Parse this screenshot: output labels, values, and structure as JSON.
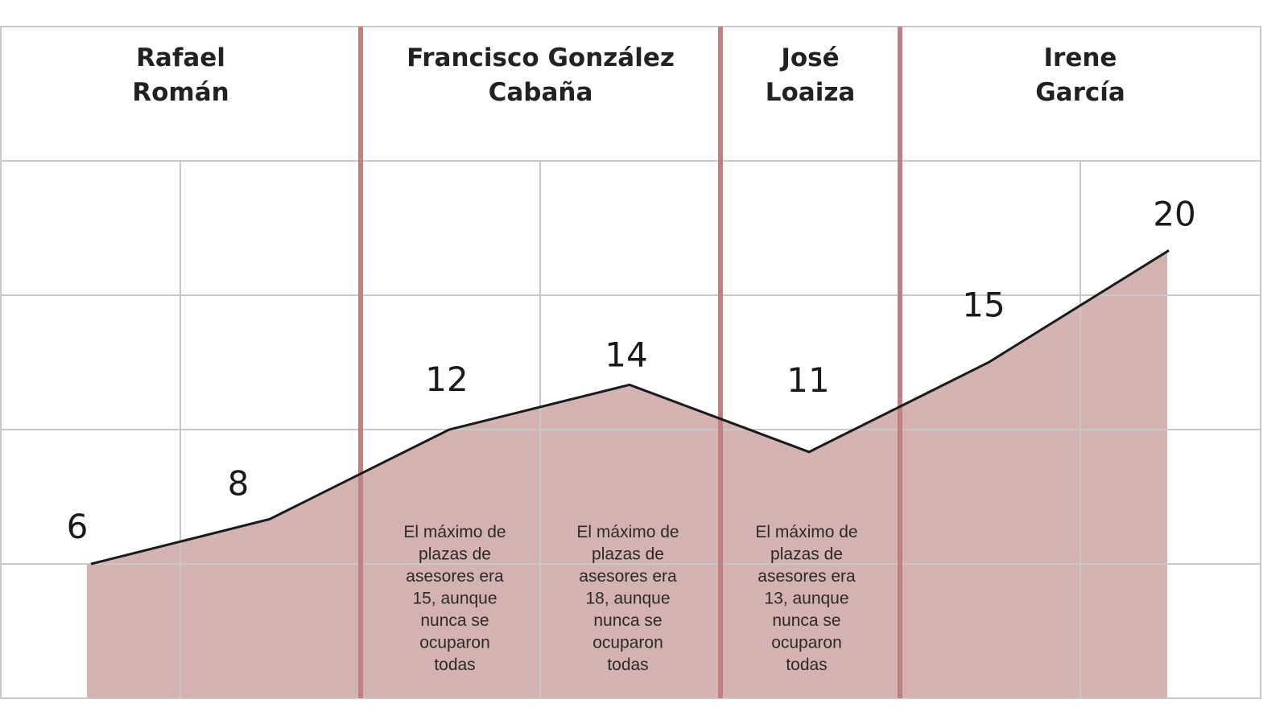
{
  "chart_data": {
    "type": "area",
    "title": "",
    "xlabel": "",
    "ylabel": "",
    "ylim": [
      0,
      24
    ],
    "grid": true,
    "colors": {
      "fill": "#d5b2b2",
      "line": "#1a1a1a",
      "divider": "#c07f80",
      "grid": "#c8c8c8"
    },
    "periods": [
      {
        "name_lines": [
          "Rafael",
          "Román"
        ],
        "note_lines": []
      },
      {
        "name_lines": [
          "Francisco González",
          "Cabaña"
        ],
        "note_lines": []
      },
      {
        "name_lines": [
          "José",
          "Loaiza"
        ],
        "note_lines": []
      },
      {
        "name_lines": [
          "Irene",
          "García"
        ],
        "note_lines": []
      }
    ],
    "points": [
      {
        "period": 0,
        "value": 6,
        "label": "6"
      },
      {
        "period": 0,
        "value": 8,
        "label": "8"
      },
      {
        "period": 1,
        "value": 12,
        "label": "12",
        "note_lines": [
          "El máximo de",
          "plazas de",
          "asesores era",
          "15, aunque",
          "nunca se",
          "ocuparon",
          "todas"
        ]
      },
      {
        "period": 1,
        "value": 14,
        "label": "14",
        "note_lines": [
          "El máximo de",
          "plazas de",
          "asesores era",
          "18, aunque",
          "nunca se",
          "ocuparon",
          "todas"
        ]
      },
      {
        "period": 2,
        "value": 11,
        "label": "11",
        "note_lines": [
          "El máximo de",
          "plazas de",
          "asesores era",
          "13, aunque",
          "nunca se",
          "ocuparon",
          "todas"
        ]
      },
      {
        "period": 3,
        "value": 15,
        "label": "15"
      },
      {
        "period": 3,
        "value": 20,
        "label": "20"
      }
    ]
  }
}
